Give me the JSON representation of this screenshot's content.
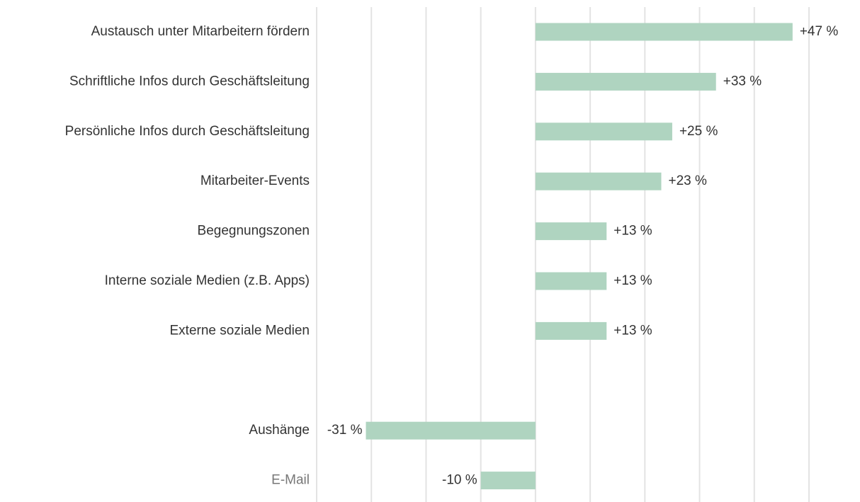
{
  "chart_data": {
    "type": "hbar",
    "categories": [
      "Austausch unter Mitarbeitern fördern",
      "Schriftliche Infos durch Geschäftsleitung",
      "Persönliche Infos durch Geschäftsleitung",
      "Mitarbeiter-Events",
      "Begegnungszonen",
      "Interne soziale Medien (z.B. Apps)",
      "Externe soziale Medien",
      null,
      "Aushänge",
      "E-Mail"
    ],
    "values": [
      47,
      33,
      25,
      23,
      13,
      13,
      13,
      null,
      -31,
      -10
    ],
    "value_labels": [
      "+47 %",
      "+33 %",
      "+25 %",
      "+23 %",
      "+13 %",
      "+13 %",
      "+13 %",
      null,
      "-31 %",
      "-10 %"
    ],
    "color": "#afd4c0",
    "xlim": [
      -40,
      50
    ],
    "xticks": [
      -40,
      -30,
      -20,
      -10,
      0,
      10,
      20,
      30,
      40,
      50
    ],
    "grid": true
  }
}
